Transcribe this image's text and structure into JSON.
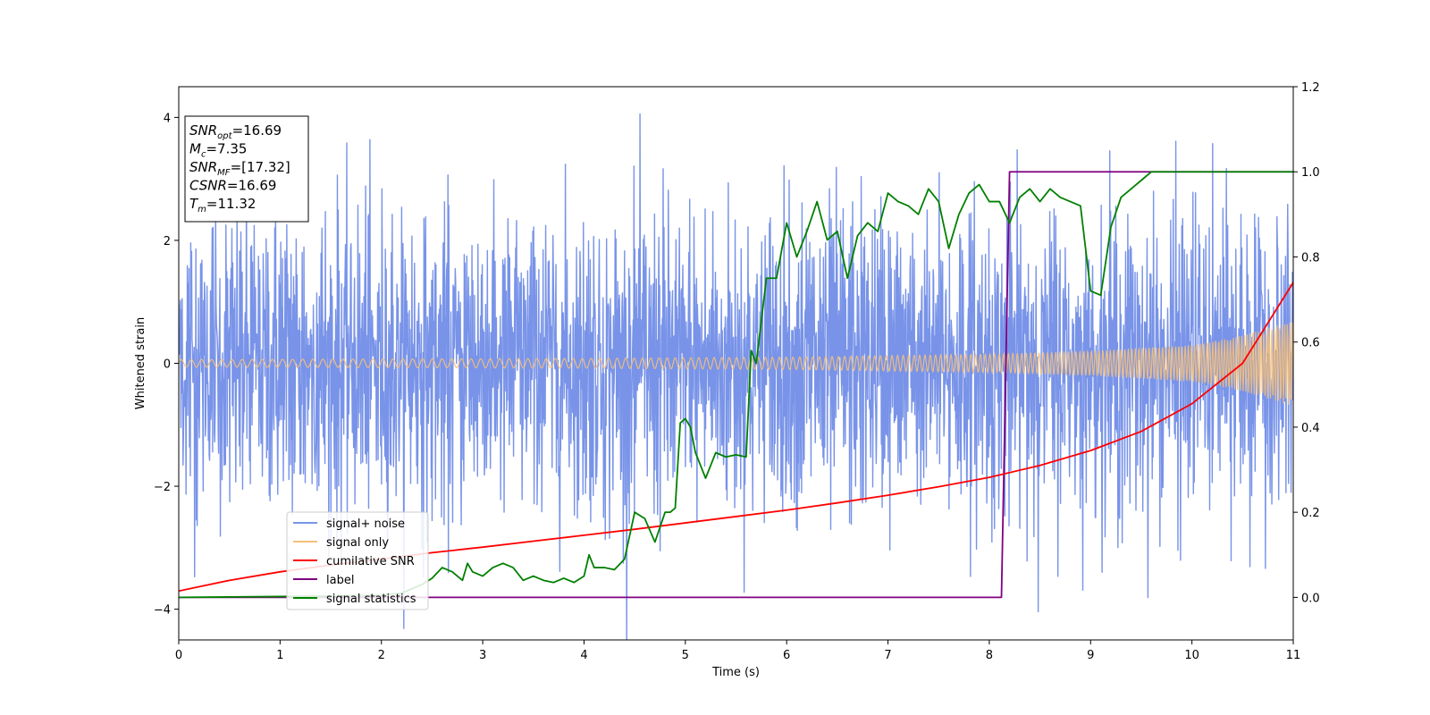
{
  "chart_data": {
    "type": "line",
    "xlabel": "Time (s)",
    "ylabel": "Whitened strain",
    "xlim": [
      0,
      11
    ],
    "ylim": [
      -4.5,
      4.5
    ],
    "ylim_right": [
      -0.1,
      1.2
    ],
    "x_ticks": [
      0,
      1,
      2,
      3,
      4,
      5,
      6,
      7,
      8,
      9,
      10,
      11
    ],
    "y_ticks": [
      -4,
      -2,
      0,
      2,
      4
    ],
    "y_ticks_right": [
      0.0,
      0.2,
      0.4,
      0.6,
      0.8,
      1.0,
      1.2
    ],
    "grid": false,
    "legend_placement": "lower-left",
    "annotation": {
      "lines": [
        {
          "base": "SNR",
          "sub": "opt",
          "value": "=16.69"
        },
        {
          "base": "M",
          "sub": "c",
          "value": "=7.35"
        },
        {
          "base": "SNR",
          "sub": "MF",
          "value": "=[17.32]"
        },
        {
          "base": "CSNR",
          "sub": "",
          "value": "=16.69"
        },
        {
          "base": "T",
          "sub": "m",
          "value": "=11.32"
        }
      ]
    },
    "series": [
      {
        "name": "signal+ noise",
        "axis": "left",
        "color": "#7893e8",
        "style": "noise band",
        "amplitude_typical": 2.3,
        "amplitude_peak": 4.0
      },
      {
        "name": "signal only",
        "axis": "left",
        "color": "#f5c07a",
        "style": "chirp",
        "amplitude_envelope": {
          "x": [
            0,
            2,
            4,
            6,
            8,
            9,
            10,
            10.5,
            11
          ],
          "y": [
            0.06,
            0.07,
            0.08,
            0.1,
            0.15,
            0.2,
            0.3,
            0.45,
            0.7
          ]
        }
      },
      {
        "name": "cumilative SNR",
        "axis": "right",
        "color": "#ff0000",
        "x": [
          0,
          0.5,
          1,
          1.5,
          2,
          2.5,
          3,
          3.5,
          4,
          4.5,
          5,
          5.5,
          6,
          6.5,
          7,
          7.5,
          8,
          8.5,
          9,
          9.5,
          10,
          10.5,
          11
        ],
        "y": [
          0.015,
          0.04,
          0.06,
          0.076,
          0.09,
          0.105,
          0.118,
          0.132,
          0.146,
          0.16,
          0.175,
          0.19,
          0.205,
          0.222,
          0.24,
          0.26,
          0.282,
          0.31,
          0.345,
          0.39,
          0.455,
          0.55,
          0.74
        ]
      },
      {
        "name": "label",
        "axis": "right",
        "color": "#800080",
        "x": [
          0,
          8.12,
          8.2,
          11
        ],
        "y": [
          0.0,
          0.0,
          1.0,
          1.0
        ]
      },
      {
        "name": "signal statistics",
        "axis": "right",
        "color": "#008000",
        "x": [
          0,
          0.5,
          1,
          1.5,
          2,
          2.2,
          2.4,
          2.5,
          2.6,
          2.7,
          2.8,
          2.85,
          2.9,
          3.0,
          3.1,
          3.2,
          3.3,
          3.4,
          3.5,
          3.6,
          3.7,
          3.8,
          3.9,
          4.0,
          4.05,
          4.1,
          4.2,
          4.3,
          4.4,
          4.5,
          4.6,
          4.7,
          4.8,
          4.85,
          4.9,
          4.95,
          5.0,
          5.05,
          5.1,
          5.2,
          5.3,
          5.4,
          5.5,
          5.6,
          5.65,
          5.7,
          5.8,
          5.9,
          6.0,
          6.1,
          6.2,
          6.3,
          6.4,
          6.5,
          6.6,
          6.7,
          6.8,
          6.9,
          7.0,
          7.1,
          7.2,
          7.3,
          7.4,
          7.5,
          7.6,
          7.7,
          7.8,
          7.9,
          8.0,
          8.1,
          8.2,
          8.3,
          8.4,
          8.5,
          8.6,
          8.7,
          8.8,
          8.9,
          9.0,
          9.1,
          9.2,
          9.3,
          9.4,
          9.5,
          9.6,
          10.0,
          10.5,
          11.0
        ],
        "y": [
          0.0,
          0.001,
          0.002,
          0.003,
          0.005,
          0.01,
          0.03,
          0.045,
          0.07,
          0.06,
          0.04,
          0.08,
          0.06,
          0.05,
          0.07,
          0.08,
          0.07,
          0.04,
          0.05,
          0.04,
          0.035,
          0.045,
          0.035,
          0.05,
          0.1,
          0.07,
          0.07,
          0.065,
          0.09,
          0.2,
          0.185,
          0.13,
          0.2,
          0.2,
          0.21,
          0.41,
          0.42,
          0.4,
          0.34,
          0.28,
          0.34,
          0.33,
          0.335,
          0.33,
          0.58,
          0.55,
          0.75,
          0.75,
          0.88,
          0.8,
          0.86,
          0.93,
          0.84,
          0.86,
          0.75,
          0.85,
          0.88,
          0.86,
          0.95,
          0.93,
          0.92,
          0.9,
          0.96,
          0.93,
          0.82,
          0.9,
          0.95,
          0.97,
          0.93,
          0.93,
          0.88,
          0.94,
          0.96,
          0.93,
          0.96,
          0.94,
          0.93,
          0.92,
          0.72,
          0.71,
          0.87,
          0.94,
          0.96,
          0.98,
          1.0,
          1.0,
          1.0,
          1.0
        ]
      }
    ]
  }
}
